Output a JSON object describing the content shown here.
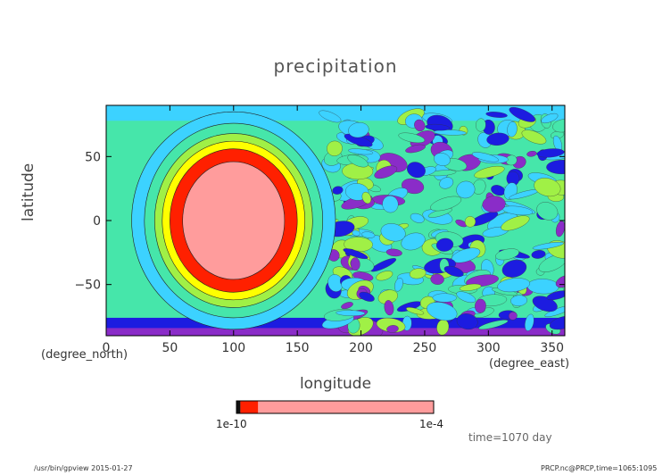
{
  "chart_data": {
    "type": "heatmap",
    "title": "precipitation",
    "xlabel": "longitude",
    "ylabel": "latitude",
    "x_units": "(degree_east)",
    "y_units": "(degree_north)",
    "xlim": [
      0,
      360
    ],
    "ylim": [
      -90,
      90
    ],
    "x_ticks": [
      "0",
      "50",
      "100",
      "150",
      "200",
      "250",
      "300",
      "350"
    ],
    "x_tick_values": [
      0,
      50,
      100,
      150,
      200,
      250,
      300,
      350
    ],
    "y_ticks": [
      "50",
      "0",
      "−50"
    ],
    "y_tick_values": [
      50,
      0,
      -50
    ],
    "feature": {
      "center_lon": 100,
      "center_lat": 0,
      "contour_levels": [
        {
          "lon_radius": 80,
          "lat_radius": 85,
          "color": "#3cd2ff"
        },
        {
          "lon_radius": 70,
          "lat_radius": 76,
          "color": "#46e6aa"
        },
        {
          "lon_radius": 62,
          "lat_radius": 68,
          "color": "#a0f046"
        },
        {
          "lon_radius": 56,
          "lat_radius": 62,
          "color": "#ffff00"
        },
        {
          "lon_radius": 50,
          "lat_radius": 56,
          "color": "#ff2000"
        },
        {
          "lon_radius": 40,
          "lat_radius": 46,
          "color": "#ff9c9c"
        }
      ]
    },
    "colorbar": {
      "min_label": "1e-10",
      "max_label": "1e-4",
      "colors": [
        "#111111",
        "#ff2000",
        "#ff9c9c"
      ],
      "fractions": [
        0.02,
        0.09,
        0.89
      ]
    },
    "palette": {
      "background": "#46e6aa",
      "low": "#1c1ce0",
      "mid": "#3cd2ff",
      "high": "#a0f046",
      "polar": "#8a2cc8"
    }
  },
  "annotation": {
    "time": "time=1070 day"
  },
  "footer": {
    "left": "/usr/bin/gpview  2015-01-27",
    "right": "PRCP.nc@PRCP,time=1065:1095"
  }
}
